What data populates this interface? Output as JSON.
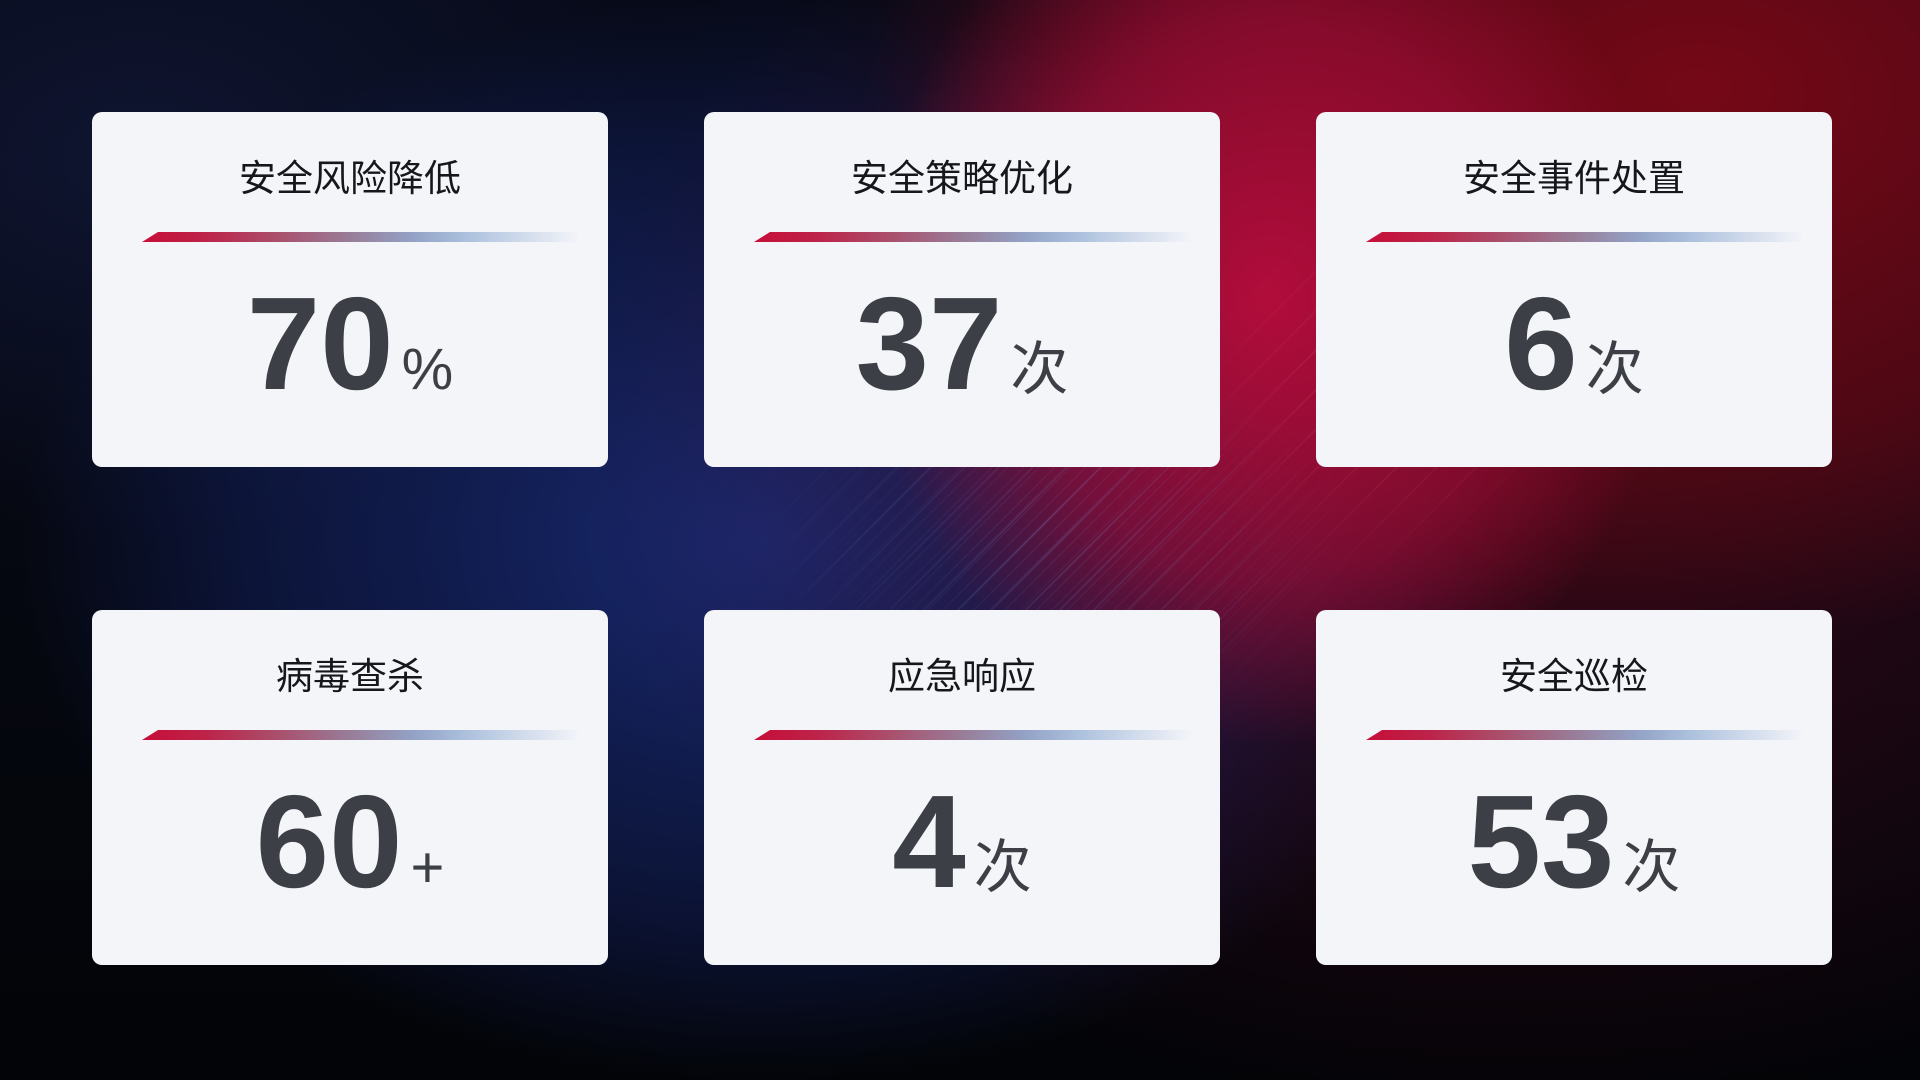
{
  "cards": [
    {
      "title": "安全风险降低",
      "value": "70",
      "unit": "%"
    },
    {
      "title": "安全策略优化",
      "value": "37",
      "unit": "次"
    },
    {
      "title": "安全事件处置",
      "value": "6",
      "unit": "次"
    },
    {
      "title": "病毒查杀",
      "value": "60",
      "unit": "+"
    },
    {
      "title": "应急响应",
      "value": "4",
      "unit": "次"
    },
    {
      "title": "安全巡检",
      "value": "53",
      "unit": "次"
    }
  ],
  "theme": {
    "card_background": "#f4f5f9",
    "accent_red": "#c60e38",
    "accent_blue": "#aabfdc",
    "title_color": "#15171c",
    "value_color": "#3c3f45",
    "backdrop_navy": "#1a2c7a",
    "backdrop_crimson": "#ba0d3e",
    "backdrop_dark_red": "#7a0816"
  }
}
